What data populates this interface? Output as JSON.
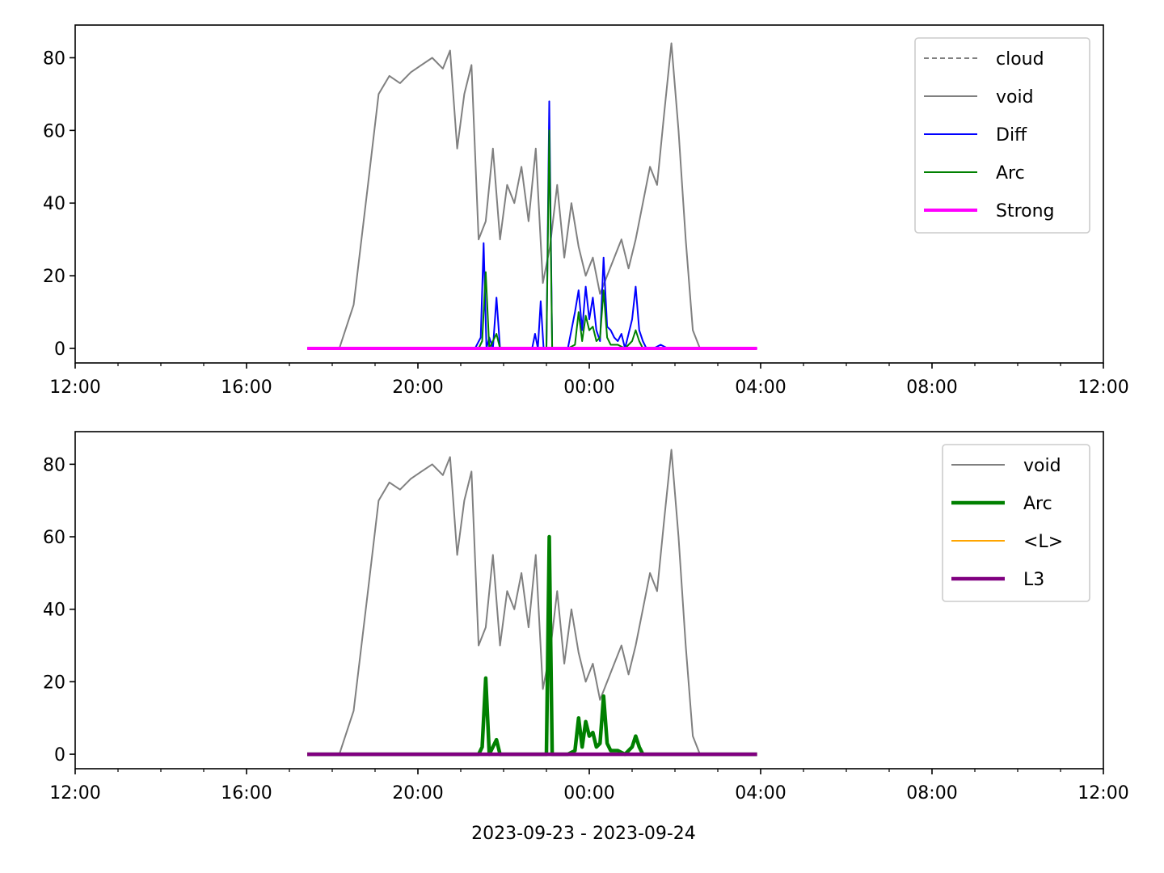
{
  "chart_data": [
    {
      "type": "line",
      "xlim": [
        "12:00",
        "12:00+1d"
      ],
      "ylim": [
        -4,
        89
      ],
      "xticks": [
        "12:00",
        "16:00",
        "20:00",
        "00:00",
        "04:00",
        "08:00",
        "12:00"
      ],
      "yticks": [
        "0",
        "20",
        "40",
        "60",
        "80"
      ],
      "grid": false,
      "legend_position": "top-right",
      "series": [
        {
          "name": "cloud",
          "color": "#808080",
          "style": "dashed",
          "x": [],
          "y": []
        },
        {
          "name": "void",
          "color": "#808080",
          "style": "solid",
          "x": [
            "18:10",
            "18:30",
            "18:50",
            "19:05",
            "19:20",
            "19:35",
            "19:50",
            "20:05",
            "20:20",
            "20:35",
            "20:45",
            "20:55",
            "21:05",
            "21:15",
            "21:25",
            "21:35",
            "21:45",
            "21:55",
            "22:05",
            "22:15",
            "22:25",
            "22:35",
            "22:45",
            "22:55",
            "23:05",
            "23:15",
            "23:25",
            "23:35",
            "23:45",
            "23:55",
            "00:05",
            "00:15",
            "00:25",
            "00:35",
            "00:45",
            "00:55",
            "01:05",
            "01:15",
            "01:25",
            "01:35",
            "01:45",
            "01:55",
            "02:05",
            "02:15",
            "02:25",
            "02:35",
            "02:45",
            "02:55"
          ],
          "y": [
            0,
            12,
            45,
            70,
            75,
            73,
            76,
            78,
            80,
            77,
            82,
            55,
            70,
            78,
            30,
            35,
            55,
            30,
            45,
            40,
            50,
            35,
            55,
            18,
            28,
            45,
            25,
            40,
            28,
            20,
            25,
            15,
            20,
            25,
            30,
            22,
            30,
            40,
            50,
            45,
            65,
            84,
            60,
            30,
            5,
            0,
            0,
            0
          ]
        },
        {
          "name": "Diff",
          "color": "#0000ff",
          "style": "solid",
          "x": [
            "17:25",
            "21:20",
            "21:28",
            "21:32",
            "21:36",
            "21:40",
            "21:45",
            "21:50",
            "21:55",
            "22:00",
            "22:40",
            "22:44",
            "22:48",
            "22:52",
            "22:56",
            "23:00",
            "23:04",
            "23:08",
            "23:12",
            "23:30",
            "23:40",
            "23:45",
            "23:50",
            "23:55",
            "00:00",
            "00:05",
            "00:10",
            "00:15",
            "00:20",
            "00:25",
            "00:30",
            "00:35",
            "00:40",
            "00:45",
            "00:50",
            "01:00",
            "01:05",
            "01:10",
            "01:15",
            "01:20",
            "01:30",
            "01:40",
            "01:50",
            "03:55"
          ],
          "y": [
            0,
            0,
            3,
            29,
            0,
            3,
            0,
            14,
            0,
            0,
            0,
            4,
            0,
            13,
            0,
            0,
            68,
            0,
            0,
            0,
            10,
            16,
            5,
            17,
            8,
            14,
            5,
            2,
            25,
            6,
            5,
            3,
            2,
            4,
            0,
            8,
            17,
            5,
            2,
            0,
            0,
            1,
            0,
            0
          ]
        },
        {
          "name": "Arc",
          "color": "#008000",
          "style": "solid",
          "x": [
            "17:25",
            "21:25",
            "21:30",
            "21:35",
            "21:40",
            "21:50",
            "21:55",
            "22:00",
            "23:00",
            "23:04",
            "23:08",
            "23:30",
            "23:40",
            "23:45",
            "23:50",
            "23:55",
            "00:00",
            "00:05",
            "00:10",
            "00:15",
            "00:20",
            "00:25",
            "00:30",
            "00:40",
            "00:50",
            "01:00",
            "01:05",
            "01:10",
            "01:15",
            "01:25",
            "03:55"
          ],
          "y": [
            0,
            0,
            2,
            21,
            0,
            4,
            0,
            0,
            0,
            60,
            0,
            0,
            1,
            10,
            2,
            9,
            5,
            6,
            2,
            3,
            16,
            3,
            1,
            1,
            0,
            2,
            5,
            2,
            0,
            0,
            0
          ]
        },
        {
          "name": "Strong",
          "color": "#ff00ff",
          "style": "solid",
          "x": [
            "17:25",
            "03:55"
          ],
          "y": [
            0,
            0
          ]
        }
      ]
    },
    {
      "type": "line",
      "xlim": [
        "12:00",
        "12:00+1d"
      ],
      "ylim": [
        -4,
        89
      ],
      "xticks": [
        "12:00",
        "16:00",
        "20:00",
        "00:00",
        "04:00",
        "08:00",
        "12:00"
      ],
      "yticks": [
        "0",
        "20",
        "40",
        "60",
        "80"
      ],
      "xlabel": "2023-09-23 - 2023-09-24",
      "grid": false,
      "legend_position": "top-right",
      "series": [
        {
          "name": "void",
          "color": "#808080",
          "style": "solid",
          "x": [
            "18:10",
            "18:30",
            "18:50",
            "19:05",
            "19:20",
            "19:35",
            "19:50",
            "20:05",
            "20:20",
            "20:35",
            "20:45",
            "20:55",
            "21:05",
            "21:15",
            "21:25",
            "21:35",
            "21:45",
            "21:55",
            "22:05",
            "22:15",
            "22:25",
            "22:35",
            "22:45",
            "22:55",
            "23:05",
            "23:15",
            "23:25",
            "23:35",
            "23:45",
            "23:55",
            "00:05",
            "00:15",
            "00:25",
            "00:35",
            "00:45",
            "00:55",
            "01:05",
            "01:15",
            "01:25",
            "01:35",
            "01:45",
            "01:55",
            "02:05",
            "02:15",
            "02:25",
            "02:35",
            "02:45",
            "02:55"
          ],
          "y": [
            0,
            12,
            45,
            70,
            75,
            73,
            76,
            78,
            80,
            77,
            82,
            55,
            70,
            78,
            30,
            35,
            55,
            30,
            45,
            40,
            50,
            35,
            55,
            18,
            28,
            45,
            25,
            40,
            28,
            20,
            25,
            15,
            20,
            25,
            30,
            22,
            30,
            40,
            50,
            45,
            65,
            84,
            60,
            30,
            5,
            0,
            0,
            0
          ]
        },
        {
          "name": "Arc",
          "color": "#008000",
          "style": "solid",
          "x": [
            "17:25",
            "21:25",
            "21:30",
            "21:35",
            "21:40",
            "21:50",
            "21:55",
            "22:00",
            "23:00",
            "23:04",
            "23:08",
            "23:30",
            "23:40",
            "23:45",
            "23:50",
            "23:55",
            "00:00",
            "00:05",
            "00:10",
            "00:15",
            "00:20",
            "00:25",
            "00:30",
            "00:40",
            "00:50",
            "01:00",
            "01:05",
            "01:10",
            "01:15",
            "01:25",
            "03:55"
          ],
          "y": [
            0,
            0,
            2,
            21,
            0,
            4,
            0,
            0,
            0,
            60,
            0,
            0,
            1,
            10,
            2,
            9,
            5,
            6,
            2,
            3,
            16,
            3,
            1,
            1,
            0,
            2,
            5,
            2,
            0,
            0,
            0
          ]
        },
        {
          "name": "<L>",
          "color": "#ffa500",
          "style": "solid",
          "x": [
            "17:25",
            "03:55"
          ],
          "y": [
            0,
            0
          ]
        },
        {
          "name": "L3",
          "color": "#800080",
          "style": "solid",
          "x": [
            "17:25",
            "03:55"
          ],
          "y": [
            0,
            0
          ]
        }
      ]
    }
  ]
}
